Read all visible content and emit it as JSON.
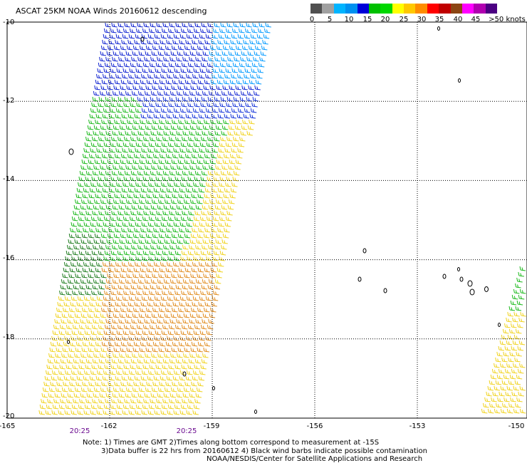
{
  "title": "ASCAT 25KM NOAA Winds 20160612 descending",
  "legend": {
    "labels": [
      "0",
      "5",
      "10",
      "15",
      "20",
      "25",
      "30",
      "35",
      "40",
      "45",
      ">50 knots"
    ],
    "colors": [
      "#505050",
      "#a0a0a0",
      "#00b4ff",
      "#0090f0",
      "#0000d8",
      "#00c000",
      "#00d800",
      "#ffff00",
      "#ffc800",
      "#ff8c00",
      "#ff0000",
      "#c00000",
      "#8b4513",
      "#ff00ff",
      "#b000b0",
      "#4b0082"
    ]
  },
  "axes": {
    "lat_labels": [
      "-10",
      "-12",
      "-14",
      "-16",
      "-18",
      "-20"
    ],
    "lon_labels": [
      "-165",
      "-162",
      "-159",
      "-156",
      "-153",
      "-150"
    ],
    "time_labels": [
      "20:25",
      "20:25"
    ]
  },
  "notes": {
    "line1": "Note: 1) Times are GMT 2)Times along bottom correspond to measurement at -15S",
    "line2": "3)Data buffer is 22 hrs from 20160612 4) Black wind barbs indicate possible contamination",
    "line3": "NOAA/NESDIS/Center for Satellite Applications and Research"
  }
}
